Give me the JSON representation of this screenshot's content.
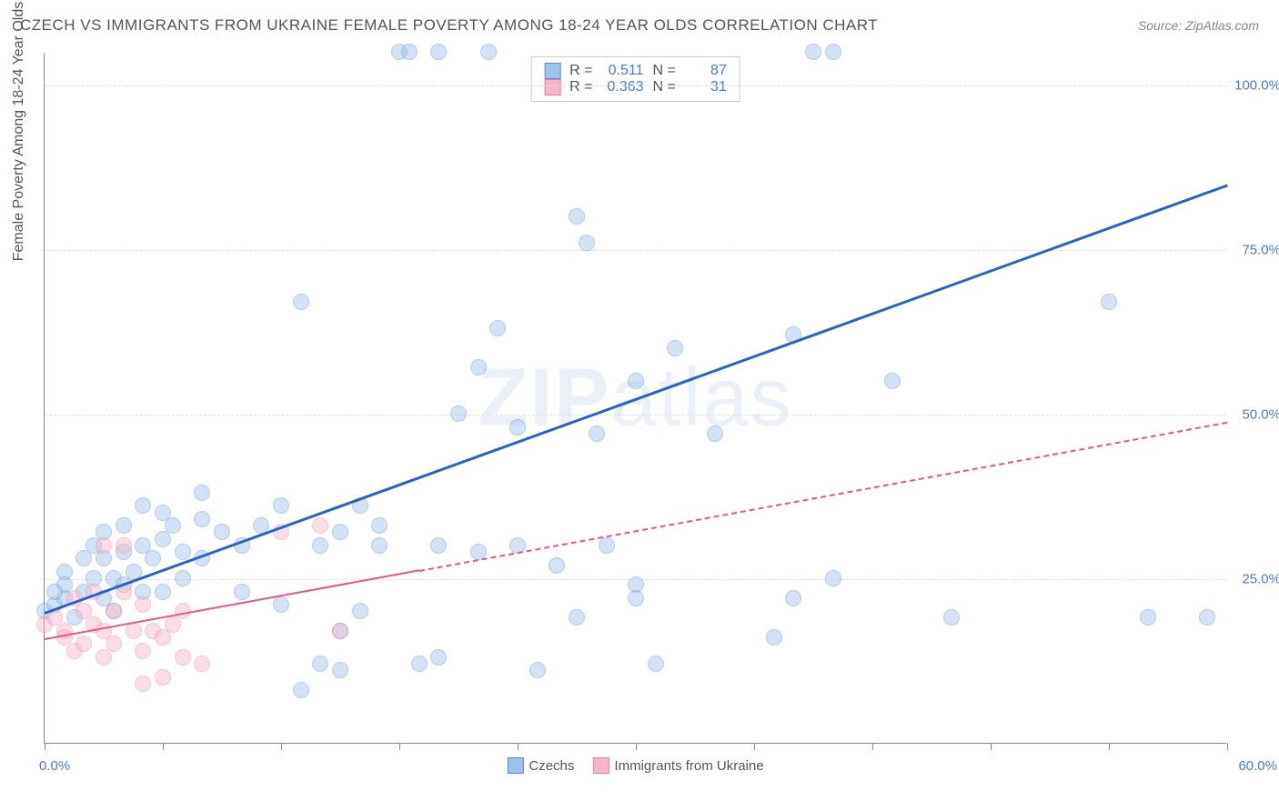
{
  "title": "CZECH VS IMMIGRANTS FROM UKRAINE FEMALE POVERTY AMONG 18-24 YEAR OLDS CORRELATION CHART",
  "source": "Source: ZipAtlas.com",
  "ylabel": "Female Poverty Among 18-24 Year Olds",
  "watermark": {
    "bold": "ZIP",
    "rest": "atlas"
  },
  "chart": {
    "type": "scatter",
    "background_color": "#ffffff",
    "grid_color": "#e0e0e0",
    "axis_color": "#888888",
    "tick_label_color": "#4a7bc8",
    "xlim": [
      0,
      60
    ],
    "ylim": [
      0,
      105
    ],
    "x_ticks": [
      0,
      6,
      12,
      18,
      24,
      30,
      36,
      42,
      48,
      54,
      60
    ],
    "x_tick_labels": {
      "0": "0.0%",
      "60": "60.0%"
    },
    "y_gridlines": [
      25,
      50,
      75,
      100
    ],
    "y_tick_labels": {
      "25": "25.0%",
      "50": "50.0%",
      "75": "75.0%",
      "100": "100.0%"
    },
    "marker_radius": 9,
    "marker_opacity": 0.45,
    "marker_stroke_opacity": 0.8
  },
  "series": [
    {
      "name": "Czechs",
      "color_fill": "#9ec3eb",
      "color_stroke": "#5b8bd4",
      "trend_color": "#2b62c9",
      "trend_width": 3,
      "trend_dash": "solid",
      "trend_x_range": [
        0,
        60
      ],
      "trend_y_range": [
        20,
        85
      ],
      "R": "0.511",
      "N": "87",
      "points": [
        [
          0,
          20
        ],
        [
          0.5,
          21
        ],
        [
          1,
          22
        ],
        [
          1,
          26
        ],
        [
          1,
          24
        ],
        [
          1.5,
          19
        ],
        [
          2,
          28
        ],
        [
          2,
          23
        ],
        [
          2.5,
          25
        ],
        [
          2.5,
          30
        ],
        [
          3,
          22
        ],
        [
          3,
          28
        ],
        [
          3,
          32
        ],
        [
          3.5,
          25
        ],
        [
          3.5,
          20
        ],
        [
          4,
          29
        ],
        [
          4,
          24
        ],
        [
          4,
          33
        ],
        [
          4.5,
          26
        ],
        [
          5,
          30
        ],
        [
          5,
          23
        ],
        [
          5,
          36
        ],
        [
          5.5,
          28
        ],
        [
          6,
          31
        ],
        [
          6,
          23
        ],
        [
          6,
          35
        ],
        [
          6.5,
          33
        ],
        [
          7,
          29
        ],
        [
          7,
          25
        ],
        [
          8,
          34
        ],
        [
          8,
          28
        ],
        [
          8,
          38
        ],
        [
          9,
          32
        ],
        [
          10,
          30
        ],
        [
          10,
          23
        ],
        [
          11,
          33
        ],
        [
          12,
          36
        ],
        [
          12,
          21
        ],
        [
          13,
          8
        ],
        [
          13,
          67
        ],
        [
          14,
          30
        ],
        [
          14,
          12
        ],
        [
          15,
          32
        ],
        [
          15,
          11
        ],
        [
          16,
          36
        ],
        [
          17,
          30
        ],
        [
          17,
          33
        ],
        [
          18,
          105
        ],
        [
          18.5,
          105
        ],
        [
          19,
          12
        ],
        [
          20,
          105
        ],
        [
          20,
          30
        ],
        [
          20,
          13
        ],
        [
          21,
          50
        ],
        [
          22,
          29
        ],
        [
          22,
          57
        ],
        [
          22.5,
          105
        ],
        [
          23,
          63
        ],
        [
          24,
          48
        ],
        [
          24,
          30
        ],
        [
          25,
          11
        ],
        [
          26,
          27
        ],
        [
          27,
          19
        ],
        [
          27,
          80
        ],
        [
          27.5,
          76
        ],
        [
          28,
          47
        ],
        [
          28.5,
          30
        ],
        [
          30,
          55
        ],
        [
          30,
          24
        ],
        [
          30,
          22
        ],
        [
          31,
          12
        ],
        [
          32,
          60
        ],
        [
          34,
          47
        ],
        [
          37,
          16
        ],
        [
          38,
          22
        ],
        [
          38,
          62
        ],
        [
          39,
          105
        ],
        [
          40,
          105
        ],
        [
          40,
          25
        ],
        [
          43,
          55
        ],
        [
          46,
          19
        ],
        [
          54,
          67
        ],
        [
          56,
          19
        ],
        [
          59,
          19
        ],
        [
          15,
          17
        ],
        [
          16,
          20
        ],
        [
          0.5,
          23
        ]
      ]
    },
    {
      "name": "Immigrants from Ukraine",
      "color_fill": "#f5b8c8",
      "color_stroke": "#e87fa3",
      "trend_color": "#e05a8a",
      "trend_width": 2.5,
      "trend_dash_solid_until": 19,
      "trend_dash": "dashed",
      "trend_x_range": [
        0,
        60
      ],
      "trend_y_range": [
        16,
        49
      ],
      "R": "0.363",
      "N": "31",
      "points": [
        [
          0,
          18
        ],
        [
          0.5,
          19
        ],
        [
          1,
          17
        ],
        [
          1,
          16
        ],
        [
          1.5,
          22
        ],
        [
          1.5,
          14
        ],
        [
          2,
          20
        ],
        [
          2,
          15
        ],
        [
          2.5,
          18
        ],
        [
          2.5,
          23
        ],
        [
          3,
          17
        ],
        [
          3,
          13
        ],
        [
          3,
          30
        ],
        [
          3.5,
          20
        ],
        [
          3.5,
          15
        ],
        [
          4,
          23
        ],
        [
          4,
          30
        ],
        [
          4.5,
          17
        ],
        [
          5,
          21
        ],
        [
          5,
          14
        ],
        [
          5,
          9
        ],
        [
          5.5,
          17
        ],
        [
          6,
          16
        ],
        [
          6,
          10
        ],
        [
          6.5,
          18
        ],
        [
          7,
          13
        ],
        [
          7,
          20
        ],
        [
          12,
          32
        ],
        [
          14,
          33
        ],
        [
          15,
          17
        ],
        [
          8,
          12
        ]
      ]
    }
  ],
  "stats_box": {
    "rows": [
      {
        "swatch": 0,
        "R_label": "R =",
        "N_label": "N ="
      },
      {
        "swatch": 1,
        "R_label": "R =",
        "N_label": "N ="
      }
    ]
  },
  "legend": {
    "items": [
      {
        "swatch": 0,
        "label": "Czechs"
      },
      {
        "swatch": 1,
        "label": "Immigrants from Ukraine"
      }
    ]
  }
}
